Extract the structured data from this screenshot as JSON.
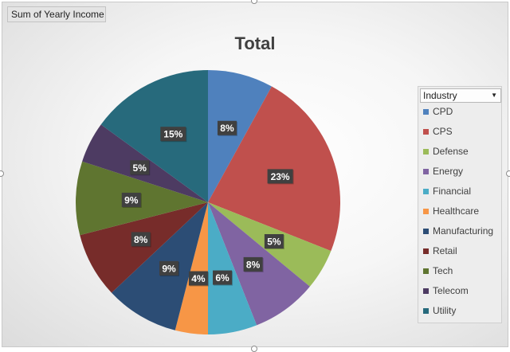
{
  "field_button": {
    "label": "Sum of Yearly Income"
  },
  "legend": {
    "header": "Industry"
  },
  "chart_data": {
    "type": "pie",
    "title": "Total",
    "categories": [
      "CPD",
      "CPS",
      "Defense",
      "Energy",
      "Financial",
      "Healthcare",
      "Manufacturing",
      "Retail",
      "Tech",
      "Telecom",
      "Utility"
    ],
    "values": [
      8,
      23,
      5,
      8,
      6,
      4,
      9,
      8,
      9,
      5,
      15
    ],
    "data_labels": [
      "8%",
      "23%",
      "5%",
      "8%",
      "6%",
      "4%",
      "9%",
      "8%",
      "9%",
      "5%",
      "15%"
    ],
    "colors": [
      "#4f81bd",
      "#c0504d",
      "#9bbb59",
      "#8064a2",
      "#4bacc6",
      "#f79646",
      "#2c4d75",
      "#772c2a",
      "#5f7530",
      "#4d3b62",
      "#276a7c"
    ],
    "legend_position": "right"
  }
}
